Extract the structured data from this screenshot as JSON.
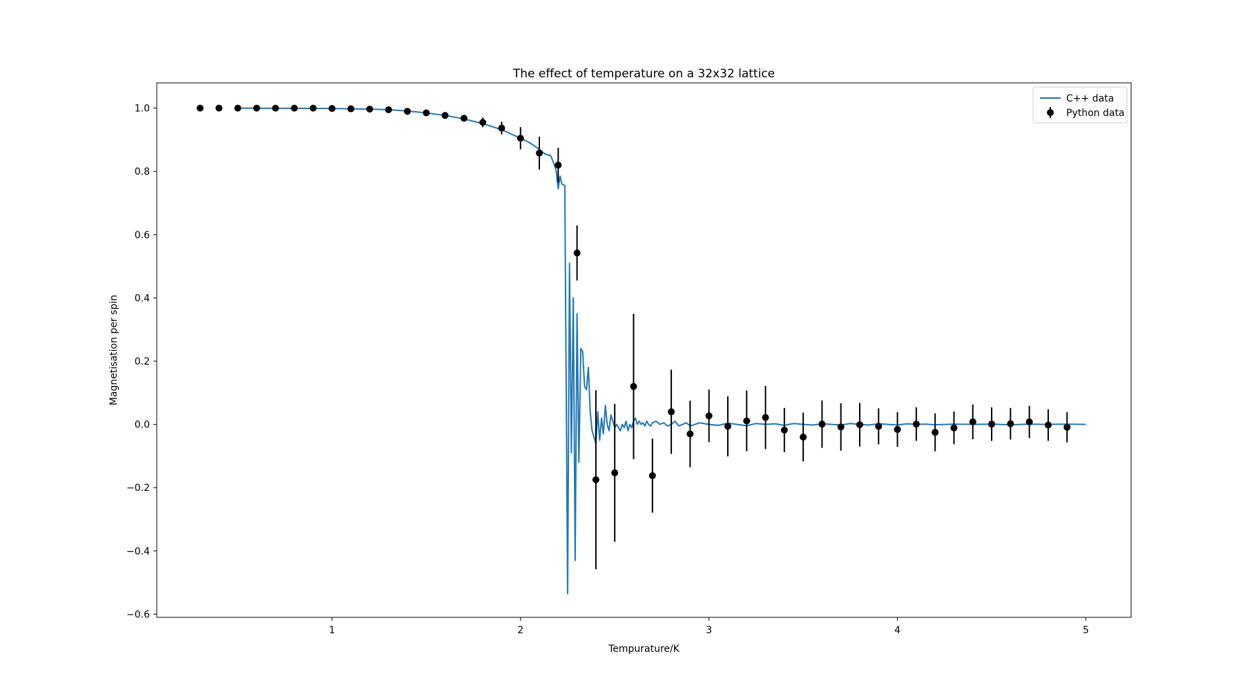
{
  "chart_data": {
    "type": "line",
    "title": "The effect of temperature on a 32x32 lattice",
    "xlabel": "Tempurature/K",
    "ylabel": "Magnetisation per spin",
    "xlim": [
      0.07,
      5.24
    ],
    "ylim": [
      -0.61,
      1.08
    ],
    "xticks": [
      1,
      2,
      3,
      4,
      5
    ],
    "xtick_labels": [
      "1",
      "2",
      "3",
      "4",
      "5"
    ],
    "yticks": [
      -0.6,
      -0.4,
      -0.2,
      0.0,
      0.2,
      0.4,
      0.6,
      0.8,
      1.0
    ],
    "ytick_labels": [
      "−0.6",
      "−0.4",
      "−0.2",
      "0.0",
      "0.2",
      "0.4",
      "0.6",
      "0.8",
      "1.0"
    ],
    "grid": false,
    "legend_position": "top-right",
    "series": [
      {
        "name": "C++ data",
        "kind": "line",
        "color": "#1f77b4",
        "x": [
          0.5,
          1.0,
          1.1,
          1.2,
          1.3,
          1.4,
          1.5,
          1.6,
          1.7,
          1.8,
          1.9,
          2.0,
          2.05,
          2.1,
          2.13,
          2.16,
          2.18,
          2.19,
          2.2,
          2.21,
          2.22,
          2.235,
          2.25,
          2.26,
          2.27,
          2.28,
          2.29,
          2.3,
          2.31,
          2.32,
          2.33,
          2.34,
          2.35,
          2.36,
          2.37,
          2.38,
          2.39,
          2.4,
          2.41,
          2.42,
          2.43,
          2.44,
          2.45,
          2.46,
          2.47,
          2.48,
          2.49,
          2.5,
          2.51,
          2.52,
          2.53,
          2.54,
          2.55,
          2.56,
          2.57,
          2.58,
          2.59,
          2.6,
          2.61,
          2.62,
          2.63,
          2.64,
          2.65,
          2.66,
          2.67,
          2.68,
          2.69,
          2.7,
          2.72,
          2.74,
          2.76,
          2.78,
          2.8,
          2.82,
          2.84,
          2.86,
          2.88,
          2.9,
          2.95,
          3.0,
          3.05,
          3.1,
          3.15,
          3.2,
          3.25,
          3.3,
          3.35,
          3.4,
          3.45,
          3.5,
          3.55,
          3.6,
          3.65,
          3.7,
          3.75,
          3.8,
          3.85,
          3.9,
          3.95,
          4.0,
          4.05,
          4.1,
          4.15,
          4.2,
          4.3,
          4.4,
          4.5,
          4.6,
          4.7,
          4.8,
          4.9,
          5.0
        ],
        "y": [
          1.0,
          0.999,
          0.998,
          0.997,
          0.995,
          0.991,
          0.985,
          0.977,
          0.966,
          0.951,
          0.932,
          0.905,
          0.89,
          0.87,
          0.855,
          0.85,
          0.82,
          0.8,
          0.745,
          0.785,
          0.76,
          0.755,
          -0.535,
          0.51,
          -0.09,
          0.4,
          -0.43,
          0.35,
          -0.12,
          0.24,
          0.23,
          0.12,
          0.11,
          0.18,
          0.04,
          -0.02,
          -0.04,
          -0.06,
          0.04,
          -0.05,
          0.02,
          -0.03,
          0.06,
          0.0,
          -0.02,
          0.03,
          0.01,
          -0.01,
          0.0,
          -0.01,
          -0.02,
          0.0,
          -0.01,
          0.01,
          -0.02,
          0.0,
          -0.01,
          0.01,
          0.02,
          0.0,
          0.01,
          0.0,
          0.005,
          -0.005,
          0.01,
          0.0,
          -0.005,
          0.005,
          0.01,
          0.0,
          0.005,
          -0.005,
          0.0,
          0.01,
          -0.005,
          0.0,
          0.005,
          -0.005,
          0.005,
          0.0,
          -0.003,
          0.004,
          0.0,
          -0.004,
          0.003,
          0.0,
          0.002,
          -0.003,
          0.003,
          0.0,
          -0.002,
          0.002,
          0.0,
          -0.002,
          0.003,
          0.0,
          -0.002,
          0.002,
          0.0,
          -0.002,
          0.002,
          0.0,
          0.001,
          -0.001,
          0.001,
          0.0,
          0.001,
          -0.001,
          0.001,
          0.0,
          0.001,
          0.0
        ]
      },
      {
        "name": "Python data",
        "kind": "errorbar",
        "color": "#000000",
        "x": [
          0.3,
          0.4,
          0.5,
          0.6,
          0.7,
          0.8,
          0.9,
          1.0,
          1.1,
          1.2,
          1.3,
          1.4,
          1.5,
          1.6,
          1.7,
          1.8,
          1.9,
          2.0,
          2.1,
          2.2,
          2.3,
          2.4,
          2.5,
          2.6,
          2.7,
          2.8,
          2.9,
          3.0,
          3.1,
          3.2,
          3.3,
          3.4,
          3.5,
          3.6,
          3.7,
          3.8,
          3.9,
          4.0,
          4.1,
          4.2,
          4.3,
          4.4,
          4.5,
          4.6,
          4.7,
          4.8,
          4.9
        ],
        "y": [
          1.0,
          1.0,
          1.0,
          1.0,
          1.0,
          1.0,
          1.0,
          0.999,
          0.998,
          0.997,
          0.995,
          0.99,
          0.985,
          0.977,
          0.968,
          0.955,
          0.937,
          0.905,
          0.858,
          0.82,
          0.542,
          -0.175,
          -0.153,
          0.12,
          -0.162,
          0.04,
          -0.03,
          0.027,
          -0.006,
          0.011,
          0.022,
          -0.018,
          -0.04,
          0.001,
          -0.008,
          -0.001,
          -0.006,
          -0.016,
          0.001,
          -0.025,
          -0.011,
          0.008,
          0.001,
          0.002,
          0.008,
          -0.002,
          -0.009
        ],
        "yerr": [
          0.0,
          0.0,
          0.0,
          0.0,
          0.0,
          0.0,
          0.0,
          0.0,
          0.0,
          0.0,
          0.0,
          0.0,
          0.005,
          0.007,
          0.01,
          0.015,
          0.02,
          0.035,
          0.052,
          0.055,
          0.087,
          0.283,
          0.218,
          0.23,
          0.117,
          0.133,
          0.105,
          0.083,
          0.095,
          0.096,
          0.1,
          0.07,
          0.077,
          0.075,
          0.075,
          0.069,
          0.057,
          0.055,
          0.053,
          0.06,
          0.052,
          0.055,
          0.053,
          0.05,
          0.051,
          0.05,
          0.048
        ]
      }
    ]
  }
}
